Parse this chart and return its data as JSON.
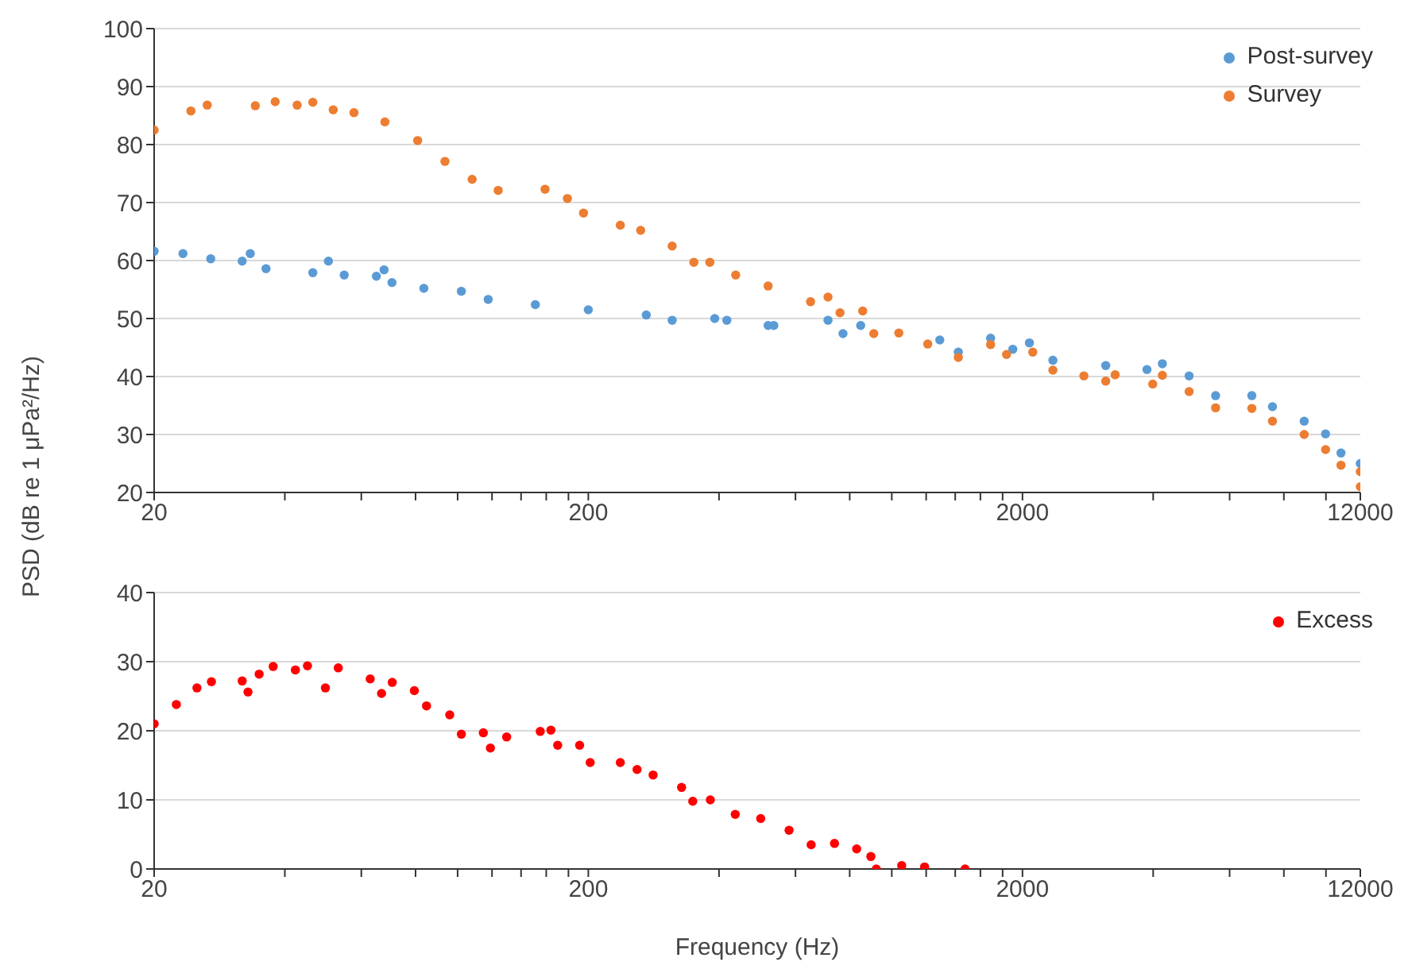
{
  "chart_data": [
    {
      "type": "scatter",
      "ylabel": "PSD (dB re 1 μPa²/Hz)",
      "log": "x",
      "grid": "y",
      "legend": "top right",
      "marker": "circle",
      "xlim": [
        20,
        12000
      ],
      "xticks": [
        20,
        {
          "value": 40,
          "label": null
        },
        {
          "value": 60,
          "label": null
        },
        {
          "value": 80,
          "label": null
        },
        {
          "value": 100,
          "label": null
        },
        {
          "value": 120,
          "label": null
        },
        {
          "value": 140,
          "label": null
        },
        {
          "value": 160,
          "label": null
        },
        {
          "value": 180,
          "label": null
        },
        200,
        {
          "value": 400,
          "label": null
        },
        {
          "value": 600,
          "label": null
        },
        {
          "value": 800,
          "label": null
        },
        {
          "value": 1000,
          "label": null
        },
        {
          "value": 1200,
          "label": null
        },
        {
          "value": 1400,
          "label": null
        },
        {
          "value": 1600,
          "label": null
        },
        {
          "value": 1800,
          "label": null
        },
        2000,
        {
          "value": 4000,
          "label": null
        },
        {
          "value": 6000,
          "label": null
        },
        {
          "value": 8000,
          "label": null
        },
        {
          "value": 10000,
          "label": null
        },
        12000
      ],
      "ylim": [
        20,
        100
      ],
      "yticks": [
        20,
        30,
        40,
        50,
        60,
        70,
        80,
        90,
        100
      ],
      "series": [
        {
          "name": "Post-survey",
          "color": "#5b9bd5",
          "x": [
            20,
            23.3,
            27,
            31.9,
            33.3,
            36.2,
            46.4,
            50.4,
            54.8,
            65,
            67.7,
            70.6,
            83.6,
            102,
            117.6,
            151,
            200,
            272,
            312,
            391,
            417,
            519,
            535,
            713,
            772,
            848,
            1290,
            1423,
            1689,
            1900,
            2075,
            2350,
            3110,
            3870,
            4200,
            4840,
            5570,
            6750,
            7530,
            8910,
            9980,
            10830,
            12000
          ],
          "values": [
            61.6,
            61.2,
            60.3,
            59.9,
            61.2,
            58.6,
            57.9,
            59.9,
            57.5,
            57.3,
            58.4,
            56.2,
            55.2,
            54.7,
            53.3,
            52.4,
            51.5,
            50.6,
            49.7,
            50,
            49.7,
            48.8,
            48.8,
            49.7,
            47.4,
            48.8,
            46.3,
            44.2,
            46.6,
            44.7,
            45.8,
            42.8,
            41.9,
            41.2,
            42.2,
            40.1,
            36.7,
            36.7,
            34.8,
            32.3,
            30.1,
            26.8,
            25
          ]
        },
        {
          "name": "Survey",
          "color": "#ed7d31",
          "x": [
            20,
            24.3,
            26.5,
            34.2,
            38,
            42.7,
            46.4,
            51.7,
            57.7,
            68,
            80.9,
            93.5,
            108,
            124,
            159,
            179,
            195,
            237,
            264,
            312,
            350,
            381,
            437,
            519,
            650,
            713,
            760,
            857,
            909,
            1038,
            1210,
            1423,
            1689,
            1838,
            2112,
            2350,
            2770,
            3110,
            3270,
            3990,
            4200,
            4840,
            5570,
            6750,
            7530,
            8910,
            9980,
            10830,
            12000,
            12000
          ],
          "values": [
            82.5,
            85.8,
            86.8,
            86.7,
            87.4,
            86.8,
            87.3,
            86,
            85.5,
            83.9,
            80.7,
            77.1,
            74,
            72.1,
            72.3,
            70.7,
            68.2,
            66.1,
            65.2,
            62.5,
            59.7,
            59.7,
            57.5,
            55.6,
            52.9,
            53.7,
            51,
            51.3,
            47.4,
            47.5,
            45.6,
            43.3,
            45.5,
            43.8,
            44.2,
            41.1,
            40.1,
            39.2,
            40.3,
            38.7,
            40.2,
            37.4,
            34.6,
            34.5,
            32.3,
            30,
            27.4,
            24.7,
            23.6,
            21
          ]
        }
      ]
    },
    {
      "type": "scatter",
      "xlabel": "Frequency (Hz)",
      "log": "x",
      "grid": "y",
      "legend": "top right",
      "marker": "circle",
      "xlim": [
        20,
        12000
      ],
      "xticks": [
        20,
        {
          "value": 40,
          "label": null
        },
        {
          "value": 60,
          "label": null
        },
        {
          "value": 80,
          "label": null
        },
        {
          "value": 100,
          "label": null
        },
        {
          "value": 120,
          "label": null
        },
        {
          "value": 140,
          "label": null
        },
        {
          "value": 160,
          "label": null
        },
        {
          "value": 180,
          "label": null
        },
        200,
        {
          "value": 400,
          "label": null
        },
        {
          "value": 600,
          "label": null
        },
        {
          "value": 800,
          "label": null
        },
        {
          "value": 1000,
          "label": null
        },
        {
          "value": 1200,
          "label": null
        },
        {
          "value": 1400,
          "label": null
        },
        {
          "value": 1600,
          "label": null
        },
        {
          "value": 1800,
          "label": null
        },
        2000,
        {
          "value": 4000,
          "label": null
        },
        {
          "value": 6000,
          "label": null
        },
        {
          "value": 8000,
          "label": null
        },
        {
          "value": 10000,
          "label": null
        },
        12000
      ],
      "ylim": [
        0,
        40
      ],
      "yticks": [
        0,
        10,
        20,
        30,
        40
      ],
      "series": [
        {
          "name": "Excess",
          "color": "#ff0000",
          "x": [
            20,
            22.5,
            25.1,
            27.1,
            31.9,
            32.9,
            34.9,
            37.6,
            42.3,
            45.1,
            49.6,
            53.1,
            62.9,
            66.8,
            70.7,
            79.5,
            84.8,
            95.9,
            102,
            114.6,
            119,
            129.7,
            155,
            164,
            170,
            191,
            202,
            237,
            259,
            282,
            328,
            348,
            382,
            436,
            499,
            580,
            652,
            738,
            830,
            895,
            921,
            1054,
            1190,
            1475
          ],
          "values": [
            21,
            23.8,
            26.2,
            27.1,
            27.2,
            25.6,
            28.2,
            29.3,
            28.8,
            29.4,
            26.2,
            29.1,
            27.5,
            25.4,
            27,
            25.8,
            23.6,
            22.3,
            19.5,
            19.7,
            17.5,
            19.1,
            19.9,
            20.1,
            17.9,
            17.9,
            15.4,
            15.4,
            14.4,
            13.6,
            11.8,
            9.8,
            10,
            7.9,
            7.3,
            5.6,
            3.5,
            3.7,
            2.9,
            1.8,
            0,
            0.5,
            0.3,
            0
          ]
        }
      ]
    }
  ]
}
